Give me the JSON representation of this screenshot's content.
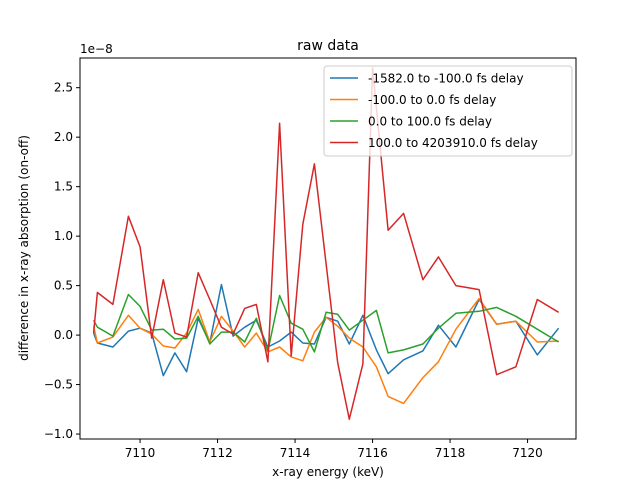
{
  "chart_data": {
    "type": "line",
    "title": "raw data",
    "xlabel": "x-ray energy (keV)",
    "ylabel": "difference in x-ray absorption (on-off)",
    "y_multiplier": "1e−8",
    "xlim": [
      7108.45,
      7121.25
    ],
    "ylim": [
      -1.05,
      2.8
    ],
    "x_ticks": [
      7110,
      7112,
      7114,
      7116,
      7118,
      7120
    ],
    "y_ticks": [
      -1.0,
      -0.5,
      0.0,
      0.5,
      1.0,
      1.5,
      2.0,
      2.5
    ],
    "grid": false,
    "legend_placement": "upper right",
    "series": [
      {
        "name": "-1582.0 to -100.0 fs delay",
        "color": "#1f77b4",
        "x": [
          7108.8,
          7108.9,
          7109.3,
          7109.7,
          7110.0,
          7110.3,
          7110.6,
          7110.9,
          7111.2,
          7111.5,
          7111.8,
          7112.1,
          7112.4,
          7112.7,
          7113.0,
          7113.3,
          7113.6,
          7113.9,
          7114.2,
          7114.5,
          7114.8,
          7115.1,
          7115.4,
          7115.75,
          7116.1,
          7116.4,
          7116.8,
          7117.3,
          7117.7,
          7118.15,
          7118.75,
          7119.2,
          7119.7,
          7120.25,
          7120.8
        ],
        "values": [
          0.02,
          -0.08,
          -0.12,
          0.04,
          0.07,
          0.02,
          -0.41,
          -0.18,
          -0.37,
          0.17,
          -0.08,
          0.51,
          -0.01,
          0.08,
          0.15,
          -0.12,
          -0.06,
          0.03,
          -0.08,
          -0.09,
          0.18,
          0.14,
          -0.09,
          0.2,
          -0.15,
          -0.39,
          -0.25,
          -0.16,
          0.1,
          -0.12,
          0.36,
          0.11,
          0.14,
          -0.2,
          0.07
        ]
      },
      {
        "name": "-100.0 to 0.0 fs delay",
        "color": "#ff7f0e",
        "x": [
          7108.8,
          7108.9,
          7109.3,
          7109.7,
          7110.0,
          7110.3,
          7110.6,
          7110.9,
          7111.2,
          7111.5,
          7111.8,
          7112.1,
          7112.4,
          7112.7,
          7113.0,
          7113.3,
          7113.6,
          7113.9,
          7114.2,
          7114.5,
          7114.8,
          7115.1,
          7115.4,
          7115.75,
          7116.1,
          7116.4,
          7116.8,
          7117.3,
          7117.7,
          7118.15,
          7118.75,
          7119.2,
          7119.7,
          7120.25,
          7120.8
        ],
        "values": [
          0.09,
          -0.08,
          -0.02,
          0.2,
          0.07,
          0.01,
          -0.11,
          -0.13,
          0.02,
          0.26,
          -0.07,
          0.19,
          0.04,
          -0.12,
          0.02,
          -0.17,
          -0.12,
          -0.22,
          -0.26,
          0.03,
          0.18,
          0.09,
          -0.03,
          -0.12,
          -0.32,
          -0.62,
          -0.69,
          -0.43,
          -0.27,
          0.06,
          0.37,
          0.11,
          0.14,
          -0.07,
          -0.06
        ]
      },
      {
        "name": "0.0 to 100.0 fs delay",
        "color": "#2ca02c",
        "x": [
          7108.8,
          7108.9,
          7109.3,
          7109.7,
          7110.0,
          7110.3,
          7110.6,
          7110.9,
          7111.2,
          7111.5,
          7111.8,
          7112.1,
          7112.4,
          7112.7,
          7113.0,
          7113.3,
          7113.6,
          7113.9,
          7114.2,
          7114.5,
          7114.8,
          7115.1,
          7115.4,
          7115.75,
          7116.1,
          7116.4,
          7116.8,
          7117.3,
          7117.7,
          7118.15,
          7118.75,
          7119.2,
          7119.7,
          7120.25,
          7120.8
        ],
        "values": [
          0.15,
          0.08,
          -0.01,
          0.41,
          0.29,
          0.05,
          0.06,
          -0.04,
          -0.03,
          0.19,
          -0.09,
          0.03,
          0.03,
          -0.07,
          0.17,
          -0.16,
          0.4,
          0.12,
          0.06,
          -0.17,
          0.23,
          0.21,
          0.05,
          0.15,
          0.25,
          -0.18,
          -0.15,
          -0.09,
          0.07,
          0.22,
          0.24,
          0.28,
          0.19,
          0.06,
          -0.07
        ]
      },
      {
        "name": "100.0 to 4203910.0 fs delay",
        "color": "#d62728",
        "x": [
          7108.8,
          7108.9,
          7109.3,
          7109.7,
          7110.0,
          7110.3,
          7110.6,
          7110.9,
          7111.2,
          7111.5,
          7111.8,
          7112.1,
          7112.4,
          7112.7,
          7113.0,
          7113.3,
          7113.6,
          7113.9,
          7114.2,
          7114.5,
          7114.8,
          7115.1,
          7115.4,
          7115.75,
          7116.0,
          7116.4,
          7116.8,
          7117.3,
          7117.7,
          7118.15,
          7118.75,
          7119.2,
          7119.7,
          7120.25,
          7120.8
        ],
        "values": [
          0.02,
          0.43,
          0.31,
          1.2,
          0.89,
          -0.03,
          0.56,
          0.02,
          -0.02,
          0.63,
          0.36,
          0.08,
          0.01,
          0.27,
          0.31,
          -0.27,
          2.14,
          -0.21,
          1.12,
          1.73,
          0.72,
          -0.28,
          -0.85,
          -0.29,
          2.7,
          1.06,
          1.23,
          0.56,
          0.79,
          0.5,
          0.46,
          -0.4,
          -0.32,
          0.36,
          0.23
        ]
      }
    ]
  }
}
